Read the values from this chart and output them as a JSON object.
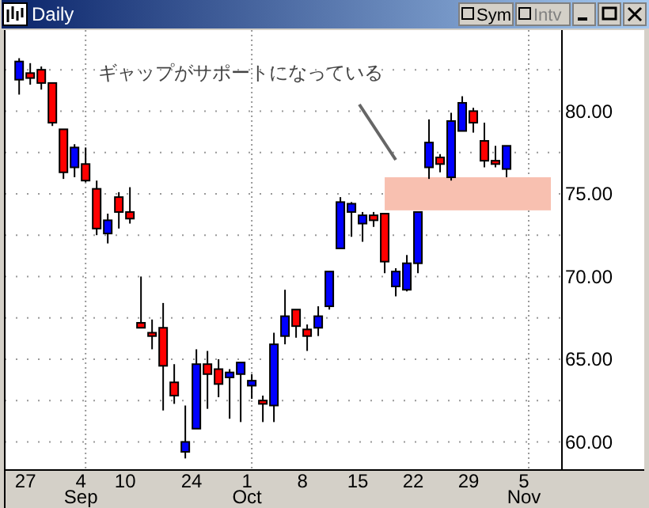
{
  "chart_data": {
    "type": "candlestick",
    "title": "Daily",
    "categories": [
      null,
      "27",
      null,
      null,
      null,
      null,
      "4\nSep",
      null,
      null,
      null,
      "10",
      null,
      null,
      null,
      null,
      null,
      "24",
      null,
      null,
      null,
      null,
      "1\nOct",
      null,
      null,
      null,
      null,
      "8",
      null,
      null,
      null,
      null,
      "15",
      null,
      null,
      null,
      null,
      "22",
      null,
      null,
      null,
      null,
      "29",
      null,
      null,
      null,
      null,
      "5\nNov",
      null,
      null
    ],
    "ohlc": [
      [
        81.9,
        83.2,
        81.0,
        83.0
      ],
      [
        82.3,
        82.9,
        81.6,
        82.0
      ],
      [
        82.5,
        82.7,
        81.3,
        81.7
      ],
      [
        81.7,
        81.7,
        79.1,
        79.3
      ],
      [
        78.9,
        78.9,
        75.9,
        76.3
      ],
      [
        76.6,
        78.0,
        76.0,
        77.8
      ],
      [
        76.8,
        77.8,
        75.7,
        75.8
      ],
      [
        75.3,
        75.8,
        72.5,
        72.9
      ],
      [
        72.6,
        73.8,
        72.0,
        73.4
      ],
      [
        74.8,
        75.1,
        72.9,
        73.9
      ],
      [
        73.9,
        75.4,
        73.2,
        73.5
      ],
      [
        67.2,
        70.0,
        66.9,
        66.9
      ],
      [
        66.6,
        67.4,
        65.6,
        66.4
      ],
      [
        66.9,
        68.4,
        61.9,
        64.6
      ],
      [
        63.6,
        64.7,
        62.3,
        62.8
      ],
      [
        59.4,
        62.2,
        59.0,
        60.0
      ],
      [
        60.8,
        65.6,
        60.8,
        64.7
      ],
      [
        64.7,
        65.5,
        62.0,
        64.1
      ],
      [
        64.4,
        65.0,
        62.7,
        63.5
      ],
      [
        63.9,
        64.4,
        61.4,
        64.2
      ],
      [
        64.1,
        64.8,
        61.2,
        64.8
      ],
      [
        63.4,
        64.1,
        62.6,
        63.7
      ],
      [
        62.5,
        62.8,
        61.2,
        62.3
      ],
      [
        62.2,
        66.6,
        61.2,
        65.9
      ],
      [
        66.4,
        69.2,
        65.9,
        67.6
      ],
      [
        68.0,
        68.0,
        66.3,
        67.0
      ],
      [
        66.8,
        67.1,
        65.5,
        66.4
      ],
      [
        66.9,
        68.2,
        66.4,
        67.6
      ],
      [
        68.2,
        70.3,
        68.0,
        70.3
      ],
      [
        71.7,
        74.8,
        71.7,
        74.5
      ],
      [
        73.9,
        74.5,
        72.4,
        74.4
      ],
      [
        73.2,
        73.9,
        72.1,
        73.7
      ],
      [
        73.7,
        73.9,
        73.0,
        73.4
      ],
      [
        73.8,
        73.8,
        70.2,
        70.9
      ],
      [
        69.4,
        70.5,
        68.8,
        70.3
      ],
      [
        69.2,
        71.3,
        69.1,
        70.8
      ],
      [
        70.8,
        73.9,
        70.2,
        73.9
      ],
      [
        76.6,
        79.5,
        75.9,
        78.1
      ],
      [
        77.2,
        77.4,
        76.3,
        76.8
      ],
      [
        76.0,
        79.9,
        75.8,
        79.4
      ],
      [
        78.8,
        80.9,
        78.8,
        80.5
      ],
      [
        80.0,
        80.2,
        78.7,
        79.3
      ],
      [
        78.2,
        79.3,
        76.6,
        77.0
      ],
      [
        77.0,
        77.9,
        76.6,
        76.8
      ],
      [
        76.5,
        77.9,
        76.0,
        77.9
      ],
      null,
      null,
      null,
      null
    ],
    "colors": [
      "#0000ff",
      "#ff0000",
      "#ff0000",
      "#ff0000",
      "#ff0000",
      "#0000ff",
      "#ff0000",
      "#ff0000",
      "#0000ff",
      "#ff0000",
      "#ff0000",
      "#ff0000",
      "#ff0000",
      "#ff0000",
      "#ff0000",
      "#0000ff",
      "#0000ff",
      "#ff0000",
      "#ff0000",
      "#0000ff",
      "#0000ff",
      "#0000ff",
      "#ff0000",
      "#0000ff",
      "#0000ff",
      "#ff0000",
      "#ff0000",
      "#0000ff",
      "#0000ff",
      "#0000ff",
      "#0000ff",
      "#0000ff",
      "#ff0000",
      "#ff0000",
      "#0000ff",
      "#0000ff",
      "#0000ff",
      "#0000ff",
      "#ff0000",
      "#0000ff",
      "#0000ff",
      "#ff0000",
      "#ff0000",
      "#ff0000",
      "#0000ff",
      null,
      null,
      null,
      null
    ],
    "ylim": [
      58.3,
      84.9
    ],
    "yticks": [
      {
        "value": 60,
        "label": "60.00"
      },
      {
        "value": 62.5,
        "label": null
      },
      {
        "value": 65,
        "label": "65.00"
      },
      {
        "value": 67.5,
        "label": null
      },
      {
        "value": 70,
        "label": "70.00"
      },
      {
        "value": 72.5,
        "label": null
      },
      {
        "value": 75,
        "label": "75.00"
      },
      {
        "value": 77.5,
        "label": null
      },
      {
        "value": 80,
        "label": "80.00"
      },
      {
        "value": 82.5,
        "label": null
      }
    ],
    "grid": true,
    "bands": [
      {
        "axis": "y",
        "from": 74,
        "to": 76,
        "color": "#f8c0b0"
      }
    ],
    "annotations": [
      "ギャップがサポートになっている",
      "Sym",
      "Intv"
    ]
  }
}
